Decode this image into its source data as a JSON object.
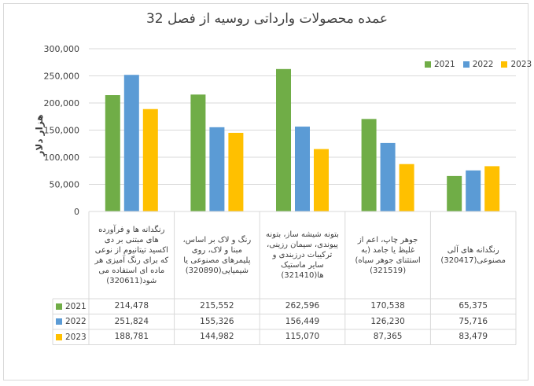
{
  "chart_data": {
    "type": "bar",
    "title": "عمده محصولات وارداتی روسیه از فصل 32",
    "ylabel": "هزار دلار",
    "xlabel": "",
    "ylim": [
      0,
      300000
    ],
    "yticks": [
      "0",
      "50,000",
      "100,000",
      "150,000",
      "200,000",
      "250,000",
      "300,000"
    ],
    "ytick_values": [
      0,
      50000,
      100000,
      150000,
      200000,
      250000,
      300000
    ],
    "grid": true,
    "legend_position": "top-right",
    "categories": [
      "رنگدانه ها و فرآورده های مبتنی بر دی اکسید تیتانیوم از نوعی که برای رنگ آمیزی هر ماده ای استفاده می شود(320611)",
      "رنگ و لاک بر اساس، مبنا و لاک، روی پلیمرهای مصنوعی یا شیمیایی(320890)",
      "بتونه شیشه ساز، بتونه پیوندی، سیمان رزینی، ترکیبات درزبندی و سایر ماستیک ها(321410)",
      "جوهر چاپ، اعم از غلیظ یا جامد (به استثنای جوهر سیاه)(321519)",
      "رنگدانه های آلی مصنوعی(320417)"
    ],
    "series": [
      {
        "name": "2021",
        "color": "#70ad47",
        "values": [
          214478,
          215552,
          262596,
          170538,
          65375
        ],
        "labels": [
          "214,478",
          "215,552",
          "262,596",
          "170,538",
          "65,375"
        ]
      },
      {
        "name": "2022",
        "color": "#5b9bd5",
        "values": [
          251824,
          155326,
          156449,
          126230,
          75716
        ],
        "labels": [
          "251,824",
          "155,326",
          "156,449",
          "126,230",
          "75,716"
        ]
      },
      {
        "name": "2023",
        "color": "#ffc000",
        "values": [
          188781,
          144982,
          115070,
          87365,
          83479
        ],
        "labels": [
          "188,781",
          "144,982",
          "115,070",
          "87,365",
          "83,479"
        ]
      }
    ]
  }
}
